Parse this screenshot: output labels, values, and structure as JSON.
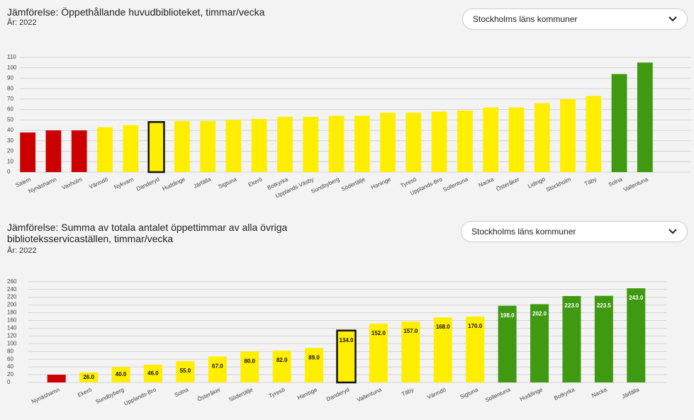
{
  "chart_data": [
    {
      "type": "bar",
      "title": "Jämförelse: Öppethållande huvudbiblioteket, timmar/vecka",
      "subtitle": "År: 2022",
      "dropdown": "Stockholms läns kommuner",
      "categories": [
        "Salem",
        "Nynäshamn",
        "Vaxholm",
        "Värmdö",
        "Nykvarn",
        "Danderyd",
        "Huddinge",
        "Järfälla",
        "Sigtuna",
        "Ekerö",
        "Botkyrka",
        "Upplands Väsby",
        "Sundbyberg",
        "Södertälje",
        "Haninge",
        "Tyresö",
        "Upplands-Bro",
        "Sollentuna",
        "Nacka",
        "Österåker",
        "Lidingö",
        "Stockholm",
        "Täby",
        "Solna",
        "Vallentuna"
      ],
      "values": [
        38,
        40,
        40,
        43,
        45,
        48,
        49,
        49,
        50,
        51,
        53,
        53,
        54,
        54,
        57,
        57,
        58,
        59,
        62,
        62,
        66,
        70,
        73,
        94,
        105
      ],
      "colors": [
        "#cc0000",
        "#cc0000",
        "#cc0000",
        "#ffee00",
        "#ffee00",
        "#ffee00",
        "#ffee00",
        "#ffee00",
        "#ffee00",
        "#ffee00",
        "#ffee00",
        "#ffee00",
        "#ffee00",
        "#ffee00",
        "#ffee00",
        "#ffee00",
        "#ffee00",
        "#ffee00",
        "#ffee00",
        "#ffee00",
        "#ffee00",
        "#ffee00",
        "#ffee00",
        "#3f9a12",
        "#3f9a12"
      ],
      "highlight": 5,
      "ylim": [
        0,
        112
      ],
      "yticks": [
        0,
        10,
        20,
        30,
        40,
        50,
        60,
        70,
        80,
        90,
        100,
        110
      ],
      "grid": true
    },
    {
      "type": "bar",
      "title": "Jämförelse: Summa av totala antalet öppettimmar av alla övriga biblioteksservicaställen, timmar/vecka",
      "subtitle": "År: 2022",
      "dropdown": "Stockholms läns kommuner",
      "categories": [
        "Nynäshamn",
        "Ekerö",
        "Sundbyberg",
        "Upplands-Bro",
        "Solna",
        "Österåker",
        "Södertälje",
        "Tyresö",
        "Haninge",
        "Danderyd",
        "Vallentuna",
        "Täby",
        "Värmdö",
        "Sigtuna",
        "Sollentuna",
        "Huddinge",
        "Botkyrka",
        "Nacka",
        "Järfälla"
      ],
      "values": [
        20,
        26,
        40,
        46,
        55,
        67,
        80,
        82,
        89,
        134,
        152,
        157,
        168,
        170,
        198,
        202,
        223,
        223.5,
        243
      ],
      "value_labels": [
        null,
        "26.0",
        "40.0",
        "46.0",
        "55.0",
        "67.0",
        "80.0",
        "82.0",
        "89.0",
        "134.0",
        "152.0",
        "157.0",
        "168.0",
        "170.0",
        "198.0",
        "202.0",
        "223.0",
        "223.5",
        "243.0"
      ],
      "colors": [
        "#cc0000",
        "#ffee00",
        "#ffee00",
        "#ffee00",
        "#ffee00",
        "#ffee00",
        "#ffee00",
        "#ffee00",
        "#ffee00",
        "#ffee00",
        "#ffee00",
        "#ffee00",
        "#ffee00",
        "#ffee00",
        "#3f9a12",
        "#3f9a12",
        "#3f9a12",
        "#3f9a12",
        "#3f9a12"
      ],
      "highlight": 9,
      "ylim": [
        0,
        265
      ],
      "yticks": [
        0,
        20,
        40,
        60,
        80,
        100,
        120,
        140,
        160,
        180,
        200,
        220,
        240,
        260
      ],
      "grid": true
    }
  ]
}
